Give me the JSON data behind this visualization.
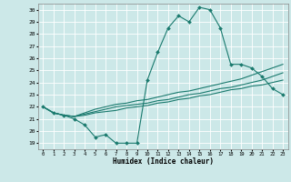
{
  "xlabel": "Humidex (Indice chaleur)",
  "xlim": [
    -0.5,
    23.5
  ],
  "ylim": [
    18.5,
    30.5
  ],
  "yticks": [
    19,
    20,
    21,
    22,
    23,
    24,
    25,
    26,
    27,
    28,
    29,
    30
  ],
  "xticks": [
    0,
    1,
    2,
    3,
    4,
    5,
    6,
    7,
    8,
    9,
    10,
    11,
    12,
    13,
    14,
    15,
    16,
    17,
    18,
    19,
    20,
    21,
    22,
    23
  ],
  "bg_color": "#cce8e8",
  "grid_color": "#ffffff",
  "line_color": "#1a7a6e",
  "line1_x": [
    0,
    1,
    2,
    3,
    4,
    5,
    6,
    7,
    8,
    9,
    10,
    11,
    12,
    13,
    14,
    15,
    16,
    17,
    18,
    19,
    20,
    21,
    22,
    23
  ],
  "line1_y": [
    22.0,
    21.5,
    21.3,
    21.0,
    20.5,
    19.5,
    19.7,
    19.0,
    19.0,
    19.0,
    24.2,
    26.5,
    28.5,
    29.5,
    29.0,
    30.2,
    30.0,
    28.5,
    25.5,
    25.5,
    25.2,
    24.5,
    23.5,
    23.0
  ],
  "line2_x": [
    0,
    1,
    2,
    3,
    4,
    5,
    6,
    7,
    8,
    9,
    10,
    11,
    12,
    13,
    14,
    15,
    16,
    17,
    18,
    19,
    20,
    21,
    22,
    23
  ],
  "line2_y": [
    22.0,
    21.5,
    21.3,
    21.2,
    21.3,
    21.5,
    21.6,
    21.7,
    21.9,
    22.0,
    22.1,
    22.3,
    22.4,
    22.6,
    22.7,
    22.9,
    23.0,
    23.2,
    23.4,
    23.5,
    23.7,
    23.8,
    24.0,
    24.2
  ],
  "line3_x": [
    0,
    1,
    2,
    3,
    4,
    5,
    6,
    7,
    8,
    9,
    10,
    11,
    12,
    13,
    14,
    15,
    16,
    17,
    18,
    19,
    20,
    21,
    22,
    23
  ],
  "line3_y": [
    22.0,
    21.5,
    21.3,
    21.2,
    21.4,
    21.6,
    21.8,
    22.0,
    22.1,
    22.2,
    22.3,
    22.5,
    22.6,
    22.8,
    23.0,
    23.1,
    23.3,
    23.5,
    23.6,
    23.8,
    24.0,
    24.2,
    24.5,
    24.8
  ],
  "line4_x": [
    0,
    1,
    2,
    3,
    4,
    5,
    6,
    7,
    8,
    9,
    10,
    11,
    12,
    13,
    14,
    15,
    16,
    17,
    18,
    19,
    20,
    21,
    22,
    23
  ],
  "line4_y": [
    22.0,
    21.5,
    21.3,
    21.2,
    21.5,
    21.8,
    22.0,
    22.2,
    22.3,
    22.5,
    22.6,
    22.8,
    23.0,
    23.2,
    23.3,
    23.5,
    23.7,
    23.9,
    24.1,
    24.3,
    24.6,
    24.9,
    25.2,
    25.5
  ]
}
